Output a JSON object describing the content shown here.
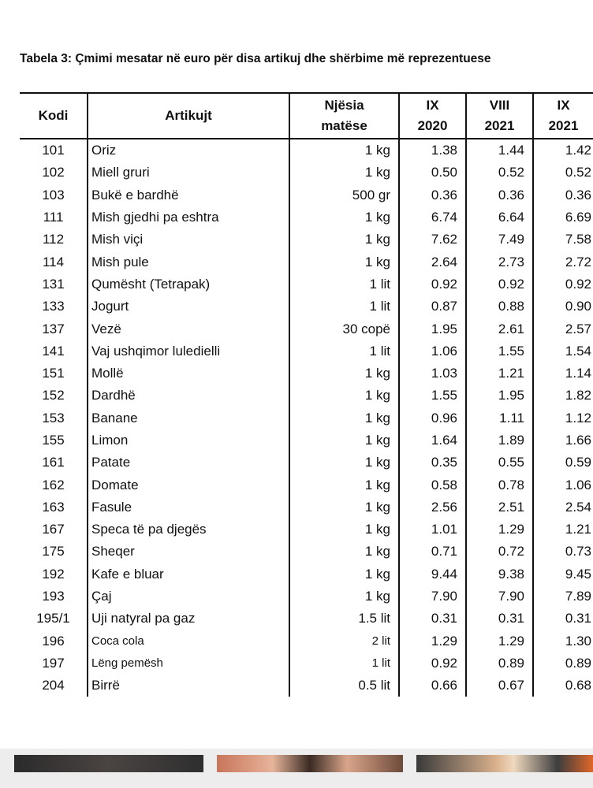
{
  "caption": "Tabela 3: Çmimi mesatar në euro për disa artikuj dhe shërbime më reprezentuese",
  "headers": {
    "code": "Kodi",
    "item": "Artikujt",
    "unit_line1": "Njësia",
    "unit_line2": "matëse",
    "p1_line1": "IX",
    "p1_line2": "2020",
    "p2_line1": "VIII",
    "p2_line2": "2021",
    "p3_line1": "IX",
    "p3_line2": "2021"
  },
  "rows": [
    {
      "code": "101",
      "item": "Oriz",
      "unit": "1 kg",
      "v1": "1.38",
      "v2": "1.44",
      "v3": "1.42"
    },
    {
      "code": "102",
      "item": "Miell gruri",
      "unit": "1 kg",
      "v1": "0.50",
      "v2": "0.52",
      "v3": "0.52"
    },
    {
      "code": "103",
      "item": "Bukë e bardhë",
      "unit": "500 gr",
      "v1": "0.36",
      "v2": "0.36",
      "v3": "0.36"
    },
    {
      "code": "111",
      "item": "Mish gjedhi pa eshtra",
      "unit": "1 kg",
      "v1": "6.74",
      "v2": "6.64",
      "v3": "6.69"
    },
    {
      "code": "112",
      "item": "Mish viçi",
      "unit": "1 kg",
      "v1": "7.62",
      "v2": "7.49",
      "v3": "7.58"
    },
    {
      "code": "114",
      "item": "Mish pule",
      "unit": "1 kg",
      "v1": "2.64",
      "v2": "2.73",
      "v3": "2.72"
    },
    {
      "code": "131",
      "item": "Qumësht  (Tetrapak)",
      "unit": "1 lit",
      "v1": "0.92",
      "v2": "0.92",
      "v3": "0.92"
    },
    {
      "code": "133",
      "item": "Jogurt",
      "unit": "1 lit",
      "v1": "0.87",
      "v2": "0.88",
      "v3": "0.90"
    },
    {
      "code": "137",
      "item": "Vezë",
      "unit": "30 copë",
      "v1": "1.95",
      "v2": "2.61",
      "v3": "2.57"
    },
    {
      "code": "141",
      "item": "Vaj ushqimor luledielli",
      "unit": "1 lit",
      "v1": "1.06",
      "v2": "1.55",
      "v3": "1.54"
    },
    {
      "code": "151",
      "item": "Mollë",
      "unit": "1 kg",
      "v1": "1.03",
      "v2": "1.21",
      "v3": "1.14"
    },
    {
      "code": "152",
      "item": "Dardhë",
      "unit": "1 kg",
      "v1": "1.55",
      "v2": "1.95",
      "v3": "1.82"
    },
    {
      "code": "153",
      "item": "Banane",
      "unit": "1 kg",
      "v1": "0.96",
      "v2": "1.11",
      "v3": "1.12"
    },
    {
      "code": "155",
      "item": "Limon",
      "unit": "1 kg",
      "v1": "1.64",
      "v2": "1.89",
      "v3": "1.66"
    },
    {
      "code": "161",
      "item": "Patate",
      "unit": "1 kg",
      "v1": "0.35",
      "v2": "0.55",
      "v3": "0.59"
    },
    {
      "code": "162",
      "item": "Domate",
      "unit": "1 kg",
      "v1": "0.58",
      "v2": "0.78",
      "v3": "1.06"
    },
    {
      "code": "163",
      "item": "Fasule",
      "unit": "1 kg",
      "v1": "2.56",
      "v2": "2.51",
      "v3": "2.54"
    },
    {
      "code": "167",
      "item": "Speca  të pa djegës",
      "unit": "1 kg",
      "v1": "1.01",
      "v2": "1.29",
      "v3": "1.21"
    },
    {
      "code": "175",
      "item": "Sheqer",
      "unit": "1 kg",
      "v1": "0.71",
      "v2": "0.72",
      "v3": "0.73"
    },
    {
      "code": "192",
      "item": "Kafe e bluar",
      "unit": "1 kg",
      "v1": "9.44",
      "v2": "9.38",
      "v3": "9.45"
    },
    {
      "code": "193",
      "item": "Çaj",
      "unit": "1 kg",
      "v1": "7.90",
      "v2": "7.90",
      "v3": "7.89"
    },
    {
      "code": "195/1",
      "item": "Uji natyral pa gaz",
      "unit": "1.5 lit",
      "v1": "0.31",
      "v2": "0.31",
      "v3": "0.31"
    },
    {
      "code": "196",
      "item": "Coca cola",
      "unit": "2 lit",
      "v1": "1.29",
      "v2": "1.29",
      "v3": "1.30",
      "small": true
    },
    {
      "code": "197",
      "item": "Lëng pemësh",
      "unit": "1 lit",
      "v1": "0.92",
      "v2": "0.89",
      "v3": "0.89",
      "small": true
    },
    {
      "code": "204",
      "item": "Birrë",
      "unit": "0.5 lit",
      "v1": "0.66",
      "v2": "0.67",
      "v3": "0.68"
    }
  ]
}
